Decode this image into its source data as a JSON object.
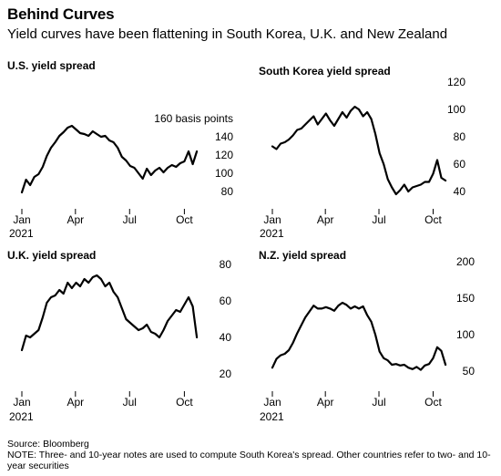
{
  "header": {
    "title": "Behind Curves",
    "subtitle": "Yield curves have been flattening in South Korea, U.K. and New Zealand"
  },
  "footer": {
    "source": "Source: Bloomberg",
    "note": "NOTE: Three- and 10-year notes are used to compute South Korea's spread. Other countries refer to two- and 10-year securities"
  },
  "chart_data": [
    {
      "type": "line",
      "title": "U.S. yield spread",
      "unit": "160 basis points",
      "x_ticks": [
        "Jan",
        "Apr",
        "Jul",
        "Oct"
      ],
      "x_year": "2021",
      "ylim": [
        72,
        160
      ],
      "y_ticks": [
        80,
        100,
        120,
        140
      ],
      "series_color": "#000000",
      "x": [
        "2021-01-01",
        "2021-01-08",
        "2021-01-15",
        "2021-01-22",
        "2021-01-29",
        "2021-02-05",
        "2021-02-12",
        "2021-02-19",
        "2021-02-26",
        "2021-03-05",
        "2021-03-12",
        "2021-03-19",
        "2021-03-26",
        "2021-04-02",
        "2021-04-09",
        "2021-04-16",
        "2021-04-23",
        "2021-04-30",
        "2021-05-07",
        "2021-05-14",
        "2021-05-21",
        "2021-05-28",
        "2021-06-04",
        "2021-06-11",
        "2021-06-18",
        "2021-06-25",
        "2021-07-02",
        "2021-07-09",
        "2021-07-16",
        "2021-07-23",
        "2021-07-30",
        "2021-08-06",
        "2021-08-13",
        "2021-08-20",
        "2021-08-27",
        "2021-09-03",
        "2021-09-10",
        "2021-09-17",
        "2021-09-24",
        "2021-10-01",
        "2021-10-08",
        "2021-10-15",
        "2021-10-22"
      ],
      "values": [
        79,
        93,
        87,
        96,
        99,
        107,
        119,
        128,
        134,
        141,
        145,
        150,
        152,
        148,
        144,
        143,
        141,
        146,
        143,
        140,
        141,
        136,
        134,
        128,
        118,
        114,
        108,
        106,
        100,
        94,
        105,
        98,
        103,
        106,
        101,
        106,
        109,
        107,
        111,
        113,
        124,
        110,
        124
      ]
    },
    {
      "type": "line",
      "title": "South Korea yield spread",
      "x_ticks": [
        "Jan",
        "Apr",
        "Jul",
        "Oct"
      ],
      "x_year": "2021",
      "ylim": [
        36,
        124
      ],
      "y_ticks": [
        40,
        60,
        80,
        100,
        120
      ],
      "series_color": "#000000",
      "x": [
        "2021-01-01",
        "2021-01-08",
        "2021-01-15",
        "2021-01-22",
        "2021-01-29",
        "2021-02-05",
        "2021-02-12",
        "2021-02-19",
        "2021-02-26",
        "2021-03-05",
        "2021-03-12",
        "2021-03-19",
        "2021-03-26",
        "2021-04-02",
        "2021-04-09",
        "2021-04-16",
        "2021-04-23",
        "2021-04-30",
        "2021-05-07",
        "2021-05-14",
        "2021-05-21",
        "2021-05-28",
        "2021-06-04",
        "2021-06-11",
        "2021-06-18",
        "2021-06-25",
        "2021-07-02",
        "2021-07-09",
        "2021-07-16",
        "2021-07-23",
        "2021-07-30",
        "2021-08-06",
        "2021-08-13",
        "2021-08-20",
        "2021-08-27",
        "2021-09-03",
        "2021-09-10",
        "2021-09-17",
        "2021-09-24",
        "2021-10-01",
        "2021-10-08",
        "2021-10-15",
        "2021-10-22"
      ],
      "values": [
        73,
        71,
        75,
        76,
        78,
        81,
        85,
        86,
        89,
        92,
        95,
        89,
        93,
        97,
        92,
        88,
        93,
        98,
        94,
        99,
        102,
        100,
        95,
        98,
        93,
        82,
        68,
        60,
        49,
        43,
        38,
        41,
        45,
        40,
        43,
        44,
        45,
        47,
        47,
        53,
        63,
        50,
        48
      ]
    },
    {
      "type": "line",
      "title": "U.K. yield spread",
      "x_ticks": [
        "Jan",
        "Apr",
        "Jul",
        "Oct"
      ],
      "x_year": "2021",
      "ylim": [
        17,
        82
      ],
      "y_ticks": [
        20,
        40,
        60,
        80
      ],
      "series_color": "#000000",
      "x": [
        "2021-01-01",
        "2021-01-08",
        "2021-01-15",
        "2021-01-22",
        "2021-01-29",
        "2021-02-05",
        "2021-02-12",
        "2021-02-19",
        "2021-02-26",
        "2021-03-05",
        "2021-03-12",
        "2021-03-19",
        "2021-03-26",
        "2021-04-02",
        "2021-04-09",
        "2021-04-16",
        "2021-04-23",
        "2021-04-30",
        "2021-05-07",
        "2021-05-14",
        "2021-05-21",
        "2021-05-28",
        "2021-06-04",
        "2021-06-11",
        "2021-06-18",
        "2021-06-25",
        "2021-07-02",
        "2021-07-09",
        "2021-07-16",
        "2021-07-23",
        "2021-07-30",
        "2021-08-06",
        "2021-08-13",
        "2021-08-20",
        "2021-08-27",
        "2021-09-03",
        "2021-09-10",
        "2021-09-17",
        "2021-09-24",
        "2021-10-01",
        "2021-10-08",
        "2021-10-15",
        "2021-10-22"
      ],
      "values": [
        33,
        41,
        40,
        42,
        44,
        51,
        59,
        62,
        63,
        66,
        64,
        70,
        67,
        70,
        68,
        72,
        70,
        73,
        74,
        72,
        68,
        70,
        65,
        62,
        56,
        50,
        48,
        46,
        44,
        45,
        47,
        43,
        42,
        40,
        44,
        49,
        52,
        55,
        54,
        58,
        62,
        57,
        40
      ]
    },
    {
      "type": "line",
      "title": "N.Z. yield spread",
      "x_ticks": [
        "Jan",
        "Apr",
        "Jul",
        "Oct"
      ],
      "x_year": "2021",
      "ylim": [
        39,
        204
      ],
      "y_ticks": [
        50,
        100,
        150,
        200
      ],
      "series_color": "#000000",
      "x": [
        "2021-01-01",
        "2021-01-08",
        "2021-01-15",
        "2021-01-22",
        "2021-01-29",
        "2021-02-05",
        "2021-02-12",
        "2021-02-19",
        "2021-02-26",
        "2021-03-05",
        "2021-03-12",
        "2021-03-19",
        "2021-03-26",
        "2021-04-02",
        "2021-04-09",
        "2021-04-16",
        "2021-04-23",
        "2021-04-30",
        "2021-05-07",
        "2021-05-14",
        "2021-05-21",
        "2021-05-28",
        "2021-06-04",
        "2021-06-11",
        "2021-06-18",
        "2021-06-25",
        "2021-07-02",
        "2021-07-09",
        "2021-07-16",
        "2021-07-23",
        "2021-07-30",
        "2021-08-06",
        "2021-08-13",
        "2021-08-20",
        "2021-08-27",
        "2021-09-03",
        "2021-09-10",
        "2021-09-17",
        "2021-09-24",
        "2021-10-01",
        "2021-10-08",
        "2021-10-15",
        "2021-10-22"
      ],
      "values": [
        55,
        67,
        72,
        74,
        79,
        89,
        102,
        113,
        124,
        132,
        140,
        136,
        136,
        138,
        136,
        133,
        140,
        144,
        141,
        136,
        139,
        136,
        139,
        127,
        118,
        100,
        77,
        68,
        65,
        59,
        60,
        58,
        59,
        55,
        53,
        56,
        52,
        58,
        60,
        68,
        83,
        78,
        59
      ]
    }
  ]
}
